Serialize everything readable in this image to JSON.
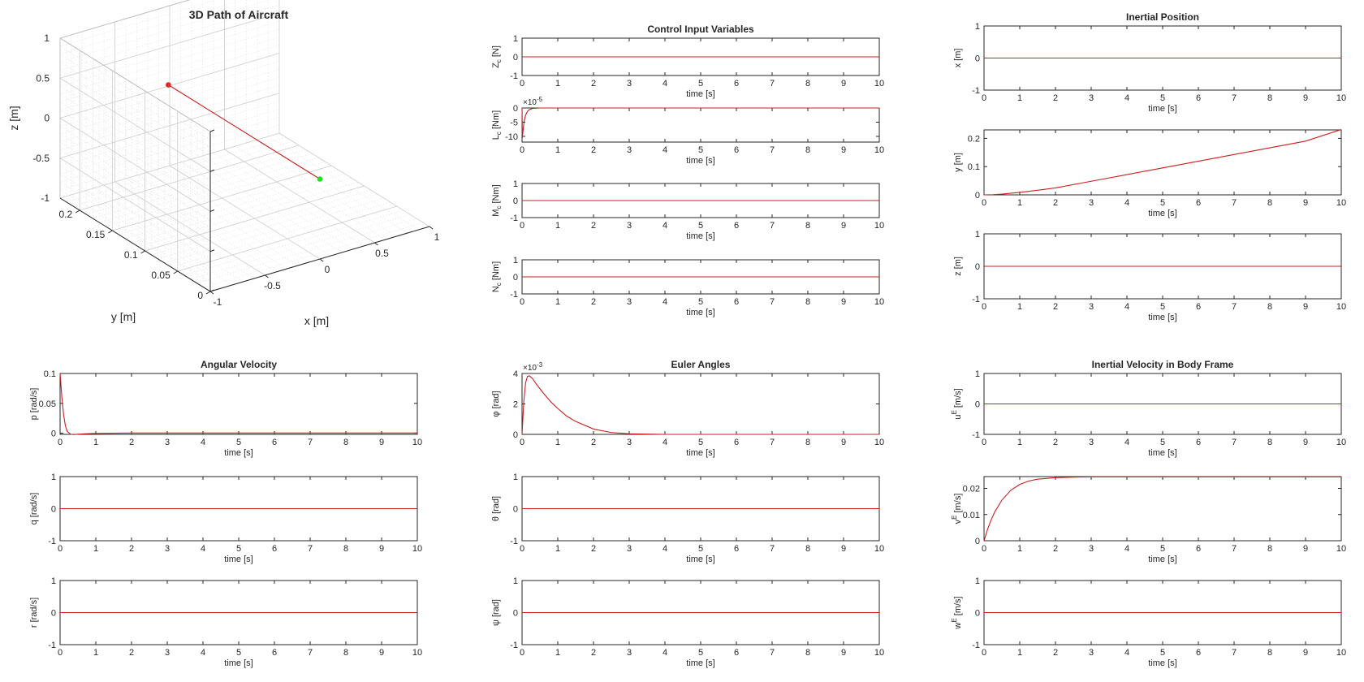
{
  "figure": {
    "background": "#ffffff",
    "axis_color": "#262626",
    "line_color": "#cc1f1f",
    "start_marker_color": "#e82424",
    "end_marker_color": "#22e022"
  },
  "chart_data": [
    {
      "id": "path3d",
      "type": "line3d",
      "title": "3D Path of Aircraft",
      "xlabel": "x [m]",
      "ylabel": "y [m]",
      "zlabel": "z [m]",
      "xlim": [
        -1,
        1
      ],
      "ylim": [
        0,
        0.23
      ],
      "zlim": [
        -1,
        1
      ],
      "xticks": [
        "-1",
        "-0.5",
        "0",
        "0.5",
        "1"
      ],
      "yticks": [
        "0",
        "0.05",
        "0.1",
        "0.15",
        "0.2"
      ],
      "zticks": [
        "-1",
        "-0.5",
        "0",
        "0.5",
        "1"
      ],
      "grid": true,
      "series": [
        {
          "x": [
            0,
            0
          ],
          "y": [
            0,
            0.232
          ],
          "z": [
            0,
            0
          ]
        }
      ],
      "markers": [
        {
          "role": "start",
          "x": 0,
          "y": 0,
          "z": 0,
          "color": "#22e022"
        },
        {
          "role": "end",
          "x": 0,
          "y": 0.232,
          "z": 0,
          "color": "#e82424"
        }
      ]
    },
    {
      "id": "zc",
      "type": "line",
      "group_title": "Control Input Variables",
      "xlabel": "time [s]",
      "ylabel": "Z",
      "ylabel_sub": "c",
      "ylabel_unit": " [N]",
      "xlim": [
        0,
        10
      ],
      "ylim": [
        -1,
        1
      ],
      "xticks": [
        "0",
        "1",
        "2",
        "3",
        "4",
        "5",
        "6",
        "7",
        "8",
        "9",
        "10"
      ],
      "yticks": [
        "-1",
        "0",
        "1"
      ],
      "series": [
        {
          "x": [
            0,
            10
          ],
          "y": [
            0,
            0
          ]
        }
      ]
    },
    {
      "id": "lc",
      "type": "line",
      "xlabel": "time [s]",
      "ylabel": "L",
      "ylabel_sub": "c",
      "ylabel_unit": " [Nm]",
      "xlim": [
        0,
        10
      ],
      "ylim": [
        -12,
        0
      ],
      "exponent": "-5",
      "xticks": [
        "0",
        "1",
        "2",
        "3",
        "4",
        "5",
        "6",
        "7",
        "8",
        "9",
        "10"
      ],
      "yticks": [
        "0",
        "-5",
        "-10"
      ],
      "series": [
        {
          "x": [
            0,
            0.01,
            0.02,
            0.04,
            0.06,
            0.1,
            0.15,
            0.2,
            0.3,
            0.5,
            1,
            10
          ],
          "y": [
            0,
            -10.5,
            -9,
            -6.5,
            -4.5,
            -2.5,
            -1.2,
            -0.6,
            -0.15,
            0,
            0,
            0
          ]
        }
      ]
    },
    {
      "id": "mc",
      "type": "line",
      "xlabel": "time [s]",
      "ylabel": "M",
      "ylabel_sub": "c",
      "ylabel_unit": " [Nm]",
      "xlim": [
        0,
        10
      ],
      "ylim": [
        -1,
        1
      ],
      "xticks": [
        "0",
        "1",
        "2",
        "3",
        "4",
        "5",
        "6",
        "7",
        "8",
        "9",
        "10"
      ],
      "yticks": [
        "-1",
        "0",
        "1"
      ],
      "series": [
        {
          "x": [
            0,
            10
          ],
          "y": [
            0,
            0
          ]
        }
      ]
    },
    {
      "id": "nc",
      "type": "line",
      "xlabel": "time [s]",
      "ylabel": "N",
      "ylabel_sub": "c",
      "ylabel_unit": " [Nm]",
      "xlim": [
        0,
        10
      ],
      "ylim": [
        -1,
        1
      ],
      "xticks": [
        "0",
        "1",
        "2",
        "3",
        "4",
        "5",
        "6",
        "7",
        "8",
        "9",
        "10"
      ],
      "yticks": [
        "-1",
        "0",
        "1"
      ],
      "series": [
        {
          "x": [
            0,
            10
          ],
          "y": [
            0,
            0
          ]
        }
      ]
    },
    {
      "id": "xpos",
      "type": "line",
      "group_title": "Inertial Position",
      "xlabel": "time [s]",
      "ylabel": "x [m]",
      "xlim": [
        0,
        10
      ],
      "ylim": [
        -1,
        1
      ],
      "xticks": [
        "0",
        "1",
        "2",
        "3",
        "4",
        "5",
        "6",
        "7",
        "8",
        "9",
        "10"
      ],
      "yticks": [
        "-1",
        "0",
        "1"
      ],
      "series": [
        {
          "x": [
            0,
            10
          ],
          "y": [
            0,
            0
          ]
        }
      ]
    },
    {
      "id": "ypos",
      "type": "line",
      "xlabel": "time [s]",
      "ylabel": "y [m]",
      "xlim": [
        0,
        10
      ],
      "ylim": [
        0,
        0.23
      ],
      "xticks": [
        "0",
        "1",
        "2",
        "3",
        "4",
        "5",
        "6",
        "7",
        "8",
        "9",
        "10"
      ],
      "yticks": [
        "0",
        "0.1",
        "0.2"
      ],
      "series": [
        {
          "x": [
            0,
            0.25,
            0.5,
            1,
            1.5,
            2,
            3,
            4,
            5,
            6,
            7,
            8,
            9,
            10
          ],
          "y": [
            0,
            0.0007,
            0.0026,
            0.0087,
            0.0163,
            0.0247,
            0.0481,
            0.0718,
            0.0955,
            0.1192,
            0.1429,
            0.1666,
            0.1903,
            0.2313
          ]
        }
      ]
    },
    {
      "id": "zpos",
      "type": "line",
      "xlabel": "time [s]",
      "ylabel": "z [m]",
      "xlim": [
        0,
        10
      ],
      "ylim": [
        -1,
        1
      ],
      "xticks": [
        "0",
        "1",
        "2",
        "3",
        "4",
        "5",
        "6",
        "7",
        "8",
        "9",
        "10"
      ],
      "yticks": [
        "-1",
        "0",
        "1"
      ],
      "series": [
        {
          "x": [
            0,
            10
          ],
          "y": [
            0,
            0
          ]
        }
      ]
    },
    {
      "id": "p",
      "type": "line",
      "group_title": "Angular Velocity",
      "xlabel": "time [s]",
      "ylabel": "p [rad/s]",
      "xlim": [
        0,
        10
      ],
      "ylim": [
        -0.002,
        0.1
      ],
      "xticks": [
        "0",
        "1",
        "2",
        "3",
        "4",
        "5",
        "6",
        "7",
        "8",
        "9",
        "10"
      ],
      "yticks": [
        "0",
        "0.05",
        "0.1"
      ],
      "series": [
        {
          "x": [
            0,
            0.05,
            0.1,
            0.15,
            0.2,
            0.3,
            0.4,
            0.5,
            0.7,
            1,
            1.5,
            2,
            3,
            10
          ],
          "y": [
            0.1,
            0.06,
            0.03,
            0.012,
            0.003,
            -0.002,
            -0.0022,
            -0.0018,
            -0.001,
            -0.0004,
            0,
            0.0003,
            0.0003,
            0.0003
          ]
        }
      ]
    },
    {
      "id": "q",
      "type": "line",
      "xlabel": "time [s]",
      "ylabel": "q [rad/s]",
      "xlim": [
        0,
        10
      ],
      "ylim": [
        -1,
        1
      ],
      "xticks": [
        "0",
        "1",
        "2",
        "3",
        "4",
        "5",
        "6",
        "7",
        "8",
        "9",
        "10"
      ],
      "yticks": [
        "-1",
        "0",
        "1"
      ],
      "series": [
        {
          "x": [
            0,
            10
          ],
          "y": [
            0,
            0
          ]
        }
      ]
    },
    {
      "id": "r",
      "type": "line",
      "xlabel": "time [s]",
      "ylabel": "r [rad/s]",
      "xlim": [
        0,
        10
      ],
      "ylim": [
        -1,
        1
      ],
      "xticks": [
        "0",
        "1",
        "2",
        "3",
        "4",
        "5",
        "6",
        "7",
        "8",
        "9",
        "10"
      ],
      "yticks": [
        "-1",
        "0",
        "1"
      ],
      "series": [
        {
          "x": [
            0,
            10
          ],
          "y": [
            0,
            0
          ]
        }
      ]
    },
    {
      "id": "phi",
      "type": "line",
      "group_title": "Euler Angles",
      "xlabel": "time [s]",
      "ylabel": "φ [rad]",
      "xlim": [
        0,
        10
      ],
      "ylim": [
        0,
        4
      ],
      "exponent": "-3",
      "xticks": [
        "0",
        "1",
        "2",
        "3",
        "4",
        "5",
        "6",
        "7",
        "8",
        "9",
        "10"
      ],
      "yticks": [
        "0",
        "2",
        "4"
      ],
      "series": [
        {
          "x": [
            0,
            0.05,
            0.1,
            0.15,
            0.2,
            0.3,
            0.4,
            0.6,
            0.8,
            1,
            1.25,
            1.5,
            2,
            2.5,
            3,
            4,
            10
          ],
          "y": [
            0,
            2.2,
            3.4,
            3.8,
            3.85,
            3.65,
            3.3,
            2.7,
            2.15,
            1.7,
            1.2,
            0.85,
            0.35,
            0.12,
            0.04,
            0,
            0
          ]
        }
      ]
    },
    {
      "id": "theta",
      "type": "line",
      "xlabel": "time [s]",
      "ylabel": "θ [rad]",
      "xlim": [
        0,
        10
      ],
      "ylim": [
        -1,
        1
      ],
      "xticks": [
        "0",
        "1",
        "2",
        "3",
        "4",
        "5",
        "6",
        "7",
        "8",
        "9",
        "10"
      ],
      "yticks": [
        "-1",
        "0",
        "1"
      ],
      "series": [
        {
          "x": [
            0,
            10
          ],
          "y": [
            0,
            0
          ]
        }
      ]
    },
    {
      "id": "psi",
      "type": "line",
      "xlabel": "time [s]",
      "ylabel": "ψ [rad]",
      "xlim": [
        0,
        10
      ],
      "ylim": [
        -1,
        1
      ],
      "xticks": [
        "0",
        "1",
        "2",
        "3",
        "4",
        "5",
        "6",
        "7",
        "8",
        "9",
        "10"
      ],
      "yticks": [
        "-1",
        "0",
        "1"
      ],
      "series": [
        {
          "x": [
            0,
            10
          ],
          "y": [
            0,
            0
          ]
        }
      ]
    },
    {
      "id": "uE",
      "type": "line",
      "group_title": "Inertial Velocity in Body Frame",
      "xlabel": "time [s]",
      "ylabel": "u",
      "ylabel_sup": "E",
      "ylabel_unit": " [m/s]",
      "xlim": [
        0,
        10
      ],
      "ylim": [
        -1,
        1
      ],
      "xticks": [
        "0",
        "1",
        "2",
        "3",
        "4",
        "5",
        "6",
        "7",
        "8",
        "9",
        "10"
      ],
      "yticks": [
        "-1",
        "0",
        "1"
      ],
      "series": [
        {
          "x": [
            0,
            10
          ],
          "y": [
            0,
            0
          ]
        }
      ]
    },
    {
      "id": "vE",
      "type": "line",
      "xlabel": "time [s]",
      "ylabel": "v",
      "ylabel_sup": "E",
      "ylabel_unit": " [m/s]",
      "xlim": [
        0,
        10
      ],
      "ylim": [
        0,
        0.0245
      ],
      "xticks": [
        "0",
        "1",
        "2",
        "3",
        "4",
        "5",
        "6",
        "7",
        "8",
        "9",
        "10"
      ],
      "yticks": [
        "0",
        "0.01",
        "0.02"
      ],
      "series": [
        {
          "x": [
            0,
            0.1,
            0.2,
            0.3,
            0.5,
            0.75,
            1,
            1.25,
            1.5,
            2,
            2.5,
            3,
            4,
            10
          ],
          "y": [
            0,
            0.0044,
            0.008,
            0.011,
            0.0155,
            0.0193,
            0.0215,
            0.0228,
            0.0235,
            0.0241,
            0.0243,
            0.0244,
            0.0244,
            0.0244
          ]
        }
      ]
    },
    {
      "id": "wE",
      "type": "line",
      "xlabel": "time [s]",
      "ylabel": "w",
      "ylabel_sup": "E",
      "ylabel_unit": " [m/s]",
      "xlim": [
        0,
        10
      ],
      "ylim": [
        -1,
        1
      ],
      "xticks": [
        "0",
        "1",
        "2",
        "3",
        "4",
        "5",
        "6",
        "7",
        "8",
        "9",
        "10"
      ],
      "yticks": [
        "-1",
        "0",
        "1"
      ],
      "series": [
        {
          "x": [
            0,
            10
          ],
          "y": [
            0,
            0
          ]
        }
      ]
    }
  ]
}
